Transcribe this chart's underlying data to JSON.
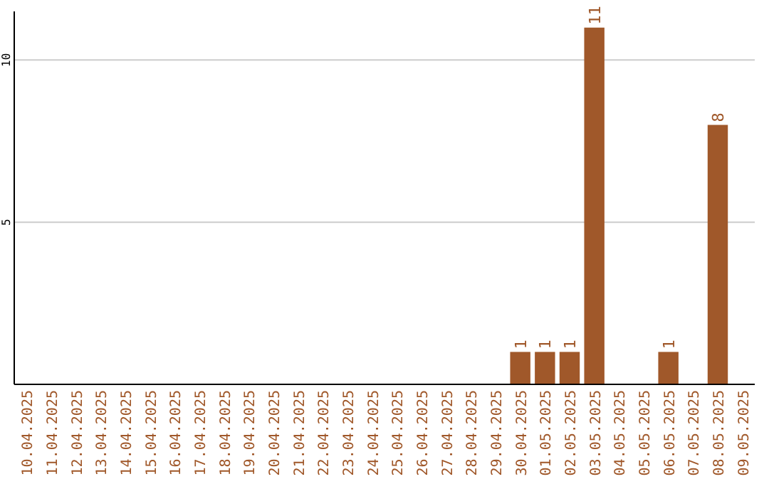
{
  "chart_data": {
    "type": "bar",
    "categories": [
      "10.04.2025",
      "11.04.2025",
      "12.04.2025",
      "13.04.2025",
      "14.04.2025",
      "15.04.2025",
      "16.04.2025",
      "17.04.2025",
      "18.04.2025",
      "19.04.2025",
      "20.04.2025",
      "21.04.2025",
      "22.04.2025",
      "23.04.2025",
      "24.04.2025",
      "25.04.2025",
      "26.04.2025",
      "27.04.2025",
      "28.04.2025",
      "29.04.2025",
      "30.04.2025",
      "01.05.2025",
      "02.05.2025",
      "03.05.2025",
      "04.05.2025",
      "05.05.2025",
      "06.05.2025",
      "07.05.2025",
      "08.05.2025",
      "09.05.2025"
    ],
    "values": [
      0,
      0,
      0,
      0,
      0,
      0,
      0,
      0,
      0,
      0,
      0,
      0,
      0,
      0,
      0,
      0,
      0,
      0,
      0,
      0,
      1,
      1,
      1,
      11,
      0,
      0,
      1,
      0,
      8,
      0
    ],
    "value_labels": [
      null,
      null,
      null,
      null,
      null,
      null,
      null,
      null,
      null,
      null,
      null,
      null,
      null,
      null,
      null,
      null,
      null,
      null,
      null,
      null,
      "1",
      "1",
      "1",
      "11",
      null,
      null,
      "1",
      null,
      "8",
      null
    ],
    "color": "#a0582a",
    "ylim": [
      0,
      11.5
    ],
    "yticks": [
      5,
      10
    ],
    "grid": "y"
  }
}
